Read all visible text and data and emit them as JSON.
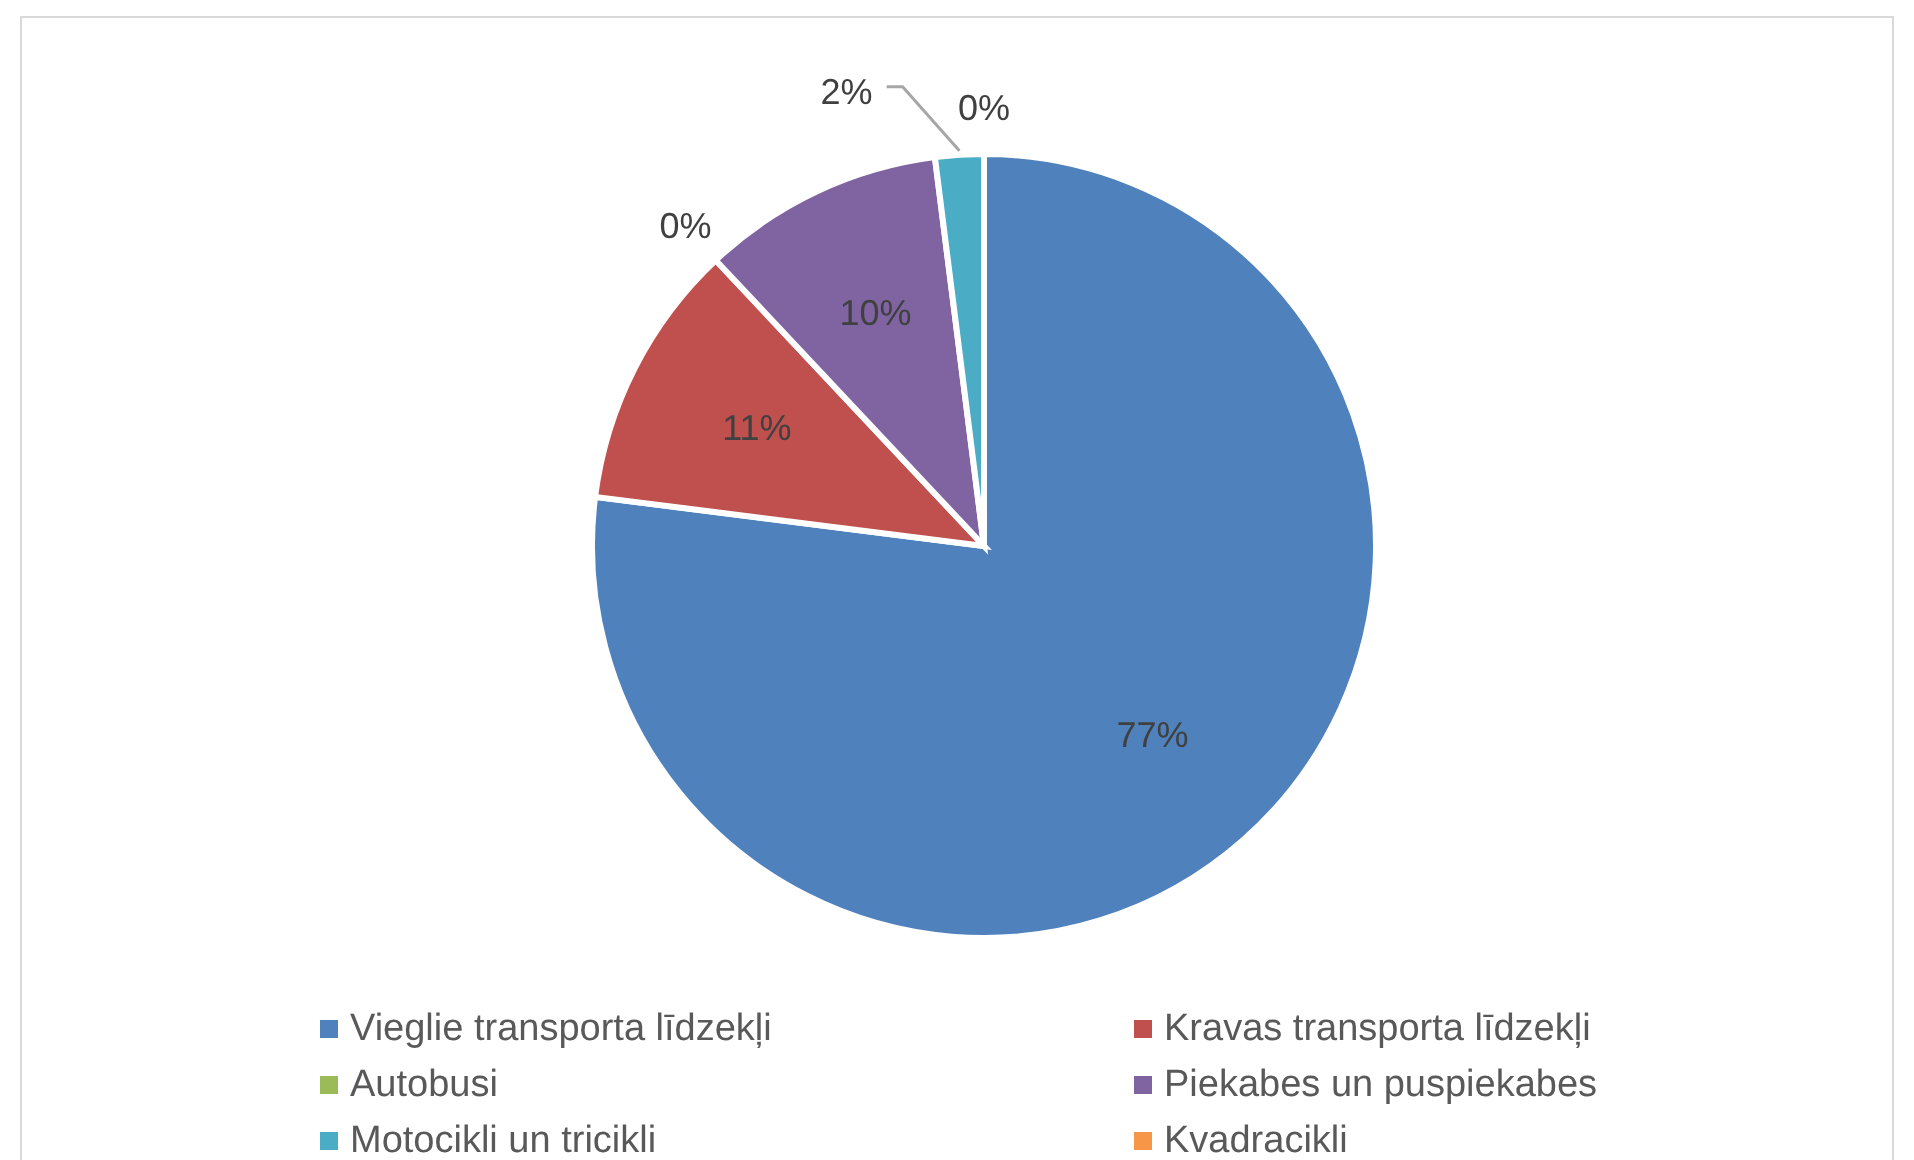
{
  "chart_data": {
    "type": "pie",
    "categories": [
      "Vieglie transporta līdzekļi",
      "Kravas transporta līdzekļi",
      "Autobusi",
      "Piekabes un puspiekabes",
      "Motocikli un tricikli",
      "Kvadracikli"
    ],
    "values": [
      77,
      11,
      0,
      10,
      2,
      0
    ],
    "colors": [
      "#4f81bd",
      "#c0504d",
      "#9bbb59",
      "#8064a2",
      "#4bacc6",
      "#f79646"
    ],
    "value_labels": [
      "77%",
      "11%",
      "0%",
      "10%",
      "2%",
      "0%"
    ],
    "legend": "bottom"
  }
}
